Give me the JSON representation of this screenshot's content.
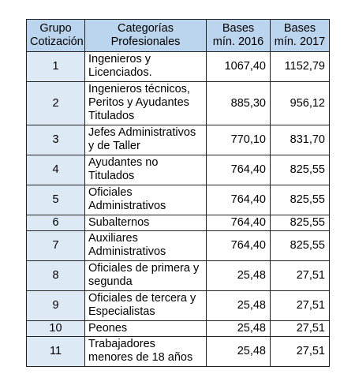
{
  "table": {
    "headers": {
      "grupo": "Grupo Cotización",
      "categorias": "Categorías Profesionales",
      "bases2016": "Bases mín. 2016",
      "bases2017": "Bases mín. 2017"
    },
    "rows": [
      {
        "grupo": "1",
        "categoria": "Ingenieros y Licenciados.",
        "b2016": "1067,40",
        "b2017": "1152,79"
      },
      {
        "grupo": "2",
        "categoria": "Ingenieros técnicos, Peritos y Ayudantes Titulados",
        "b2016": "885,30",
        "b2017": "956,12"
      },
      {
        "grupo": "3",
        "categoria": "Jefes Administrativos y de Taller",
        "b2016": "770,10",
        "b2017": "831,70"
      },
      {
        "grupo": "4",
        "categoria": "Ayudantes no Titulados",
        "b2016": "764,40",
        "b2017": "825,55"
      },
      {
        "grupo": "5",
        "categoria": "Oficiales Administrativos",
        "b2016": "764,40",
        "b2017": "825,55"
      },
      {
        "grupo": "6",
        "categoria": "Subalternos",
        "b2016": "764,40",
        "b2017": "825,55"
      },
      {
        "grupo": "7",
        "categoria": "Auxiliares Administrativos",
        "b2016": "764,40",
        "b2017": "825,55"
      },
      {
        "grupo": "8",
        "categoria": "Oficiales de primera y segunda",
        "b2016": "25,48",
        "b2017": "27,51"
      },
      {
        "grupo": "9",
        "categoria": "Oficiales de tercera y Especialistas",
        "b2016": "25,48",
        "b2017": "27,51"
      },
      {
        "grupo": "10",
        "categoria": "Peones",
        "b2016": "25,48",
        "b2017": "27,51"
      },
      {
        "grupo": "11",
        "categoria": "Trabajadores menores de 18 años",
        "b2016": "25,48",
        "b2017": "27,51"
      }
    ]
  }
}
